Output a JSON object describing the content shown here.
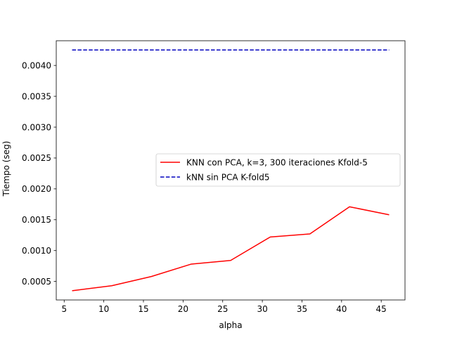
{
  "chart_data": {
    "type": "line",
    "title": "",
    "xlabel": "alpha",
    "ylabel": "Tiempo (seg)",
    "xlim": [
      4,
      48
    ],
    "ylim": [
      0.0002,
      0.0044
    ],
    "x_ticks": [
      5,
      10,
      15,
      20,
      25,
      30,
      35,
      40,
      45
    ],
    "x_tick_labels": [
      "5",
      "10",
      "15",
      "20",
      "25",
      "30",
      "35",
      "40",
      "45"
    ],
    "y_ticks": [
      0.0005,
      0.001,
      0.0015,
      0.002,
      0.0025,
      0.003,
      0.0035,
      0.004
    ],
    "y_tick_labels": [
      "0.0005",
      "0.0010",
      "0.0015",
      "0.0020",
      "0.0025",
      "0.0030",
      "0.0035",
      "0.0040"
    ],
    "grid": false,
    "legend_position": "center-right",
    "x": [
      6,
      11,
      16,
      21,
      26,
      31,
      36,
      41,
      46
    ],
    "series": [
      {
        "name": "KNN con PCA, k=3, 300 iteraciones Kfold-5",
        "color": "#ff0000",
        "style": "solid",
        "values": [
          0.00035,
          0.00043,
          0.00058,
          0.00078,
          0.00084,
          0.00122,
          0.00127,
          0.00171,
          0.00158
        ]
      },
      {
        "name": "kNN sin PCA K-fold5",
        "color": "#0000bf",
        "style": "dashed",
        "values": [
          0.00425,
          0.00425,
          0.00425,
          0.00425,
          0.00425,
          0.00425,
          0.00425,
          0.00425,
          0.00425
        ]
      }
    ]
  }
}
